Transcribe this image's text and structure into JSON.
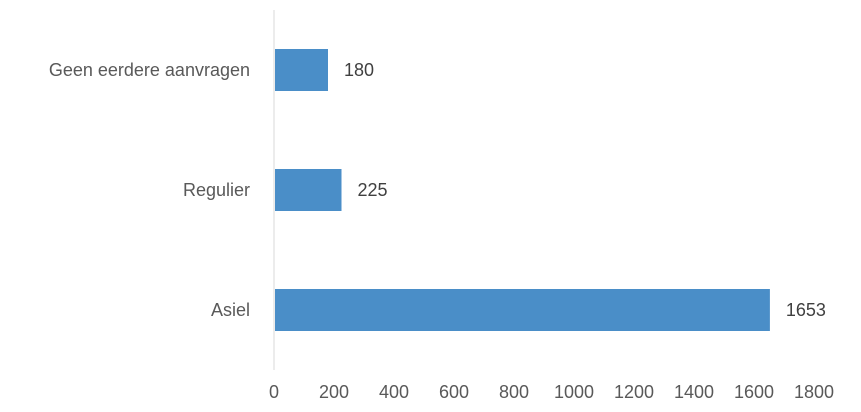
{
  "chart_data": {
    "type": "bar",
    "orientation": "horizontal",
    "categories": [
      "Geen eerdere aanvragen",
      "Regulier",
      "Asiel"
    ],
    "values": [
      180,
      225,
      1653
    ],
    "xlim": [
      0,
      1800
    ],
    "xticks": [
      0,
      200,
      400,
      600,
      800,
      1000,
      1200,
      1400,
      1600,
      1800
    ],
    "data_labels": true,
    "grid": false,
    "legend": "none",
    "colors": {
      "bar": "#4a8ec8",
      "axis": "#d9d9d9"
    }
  }
}
